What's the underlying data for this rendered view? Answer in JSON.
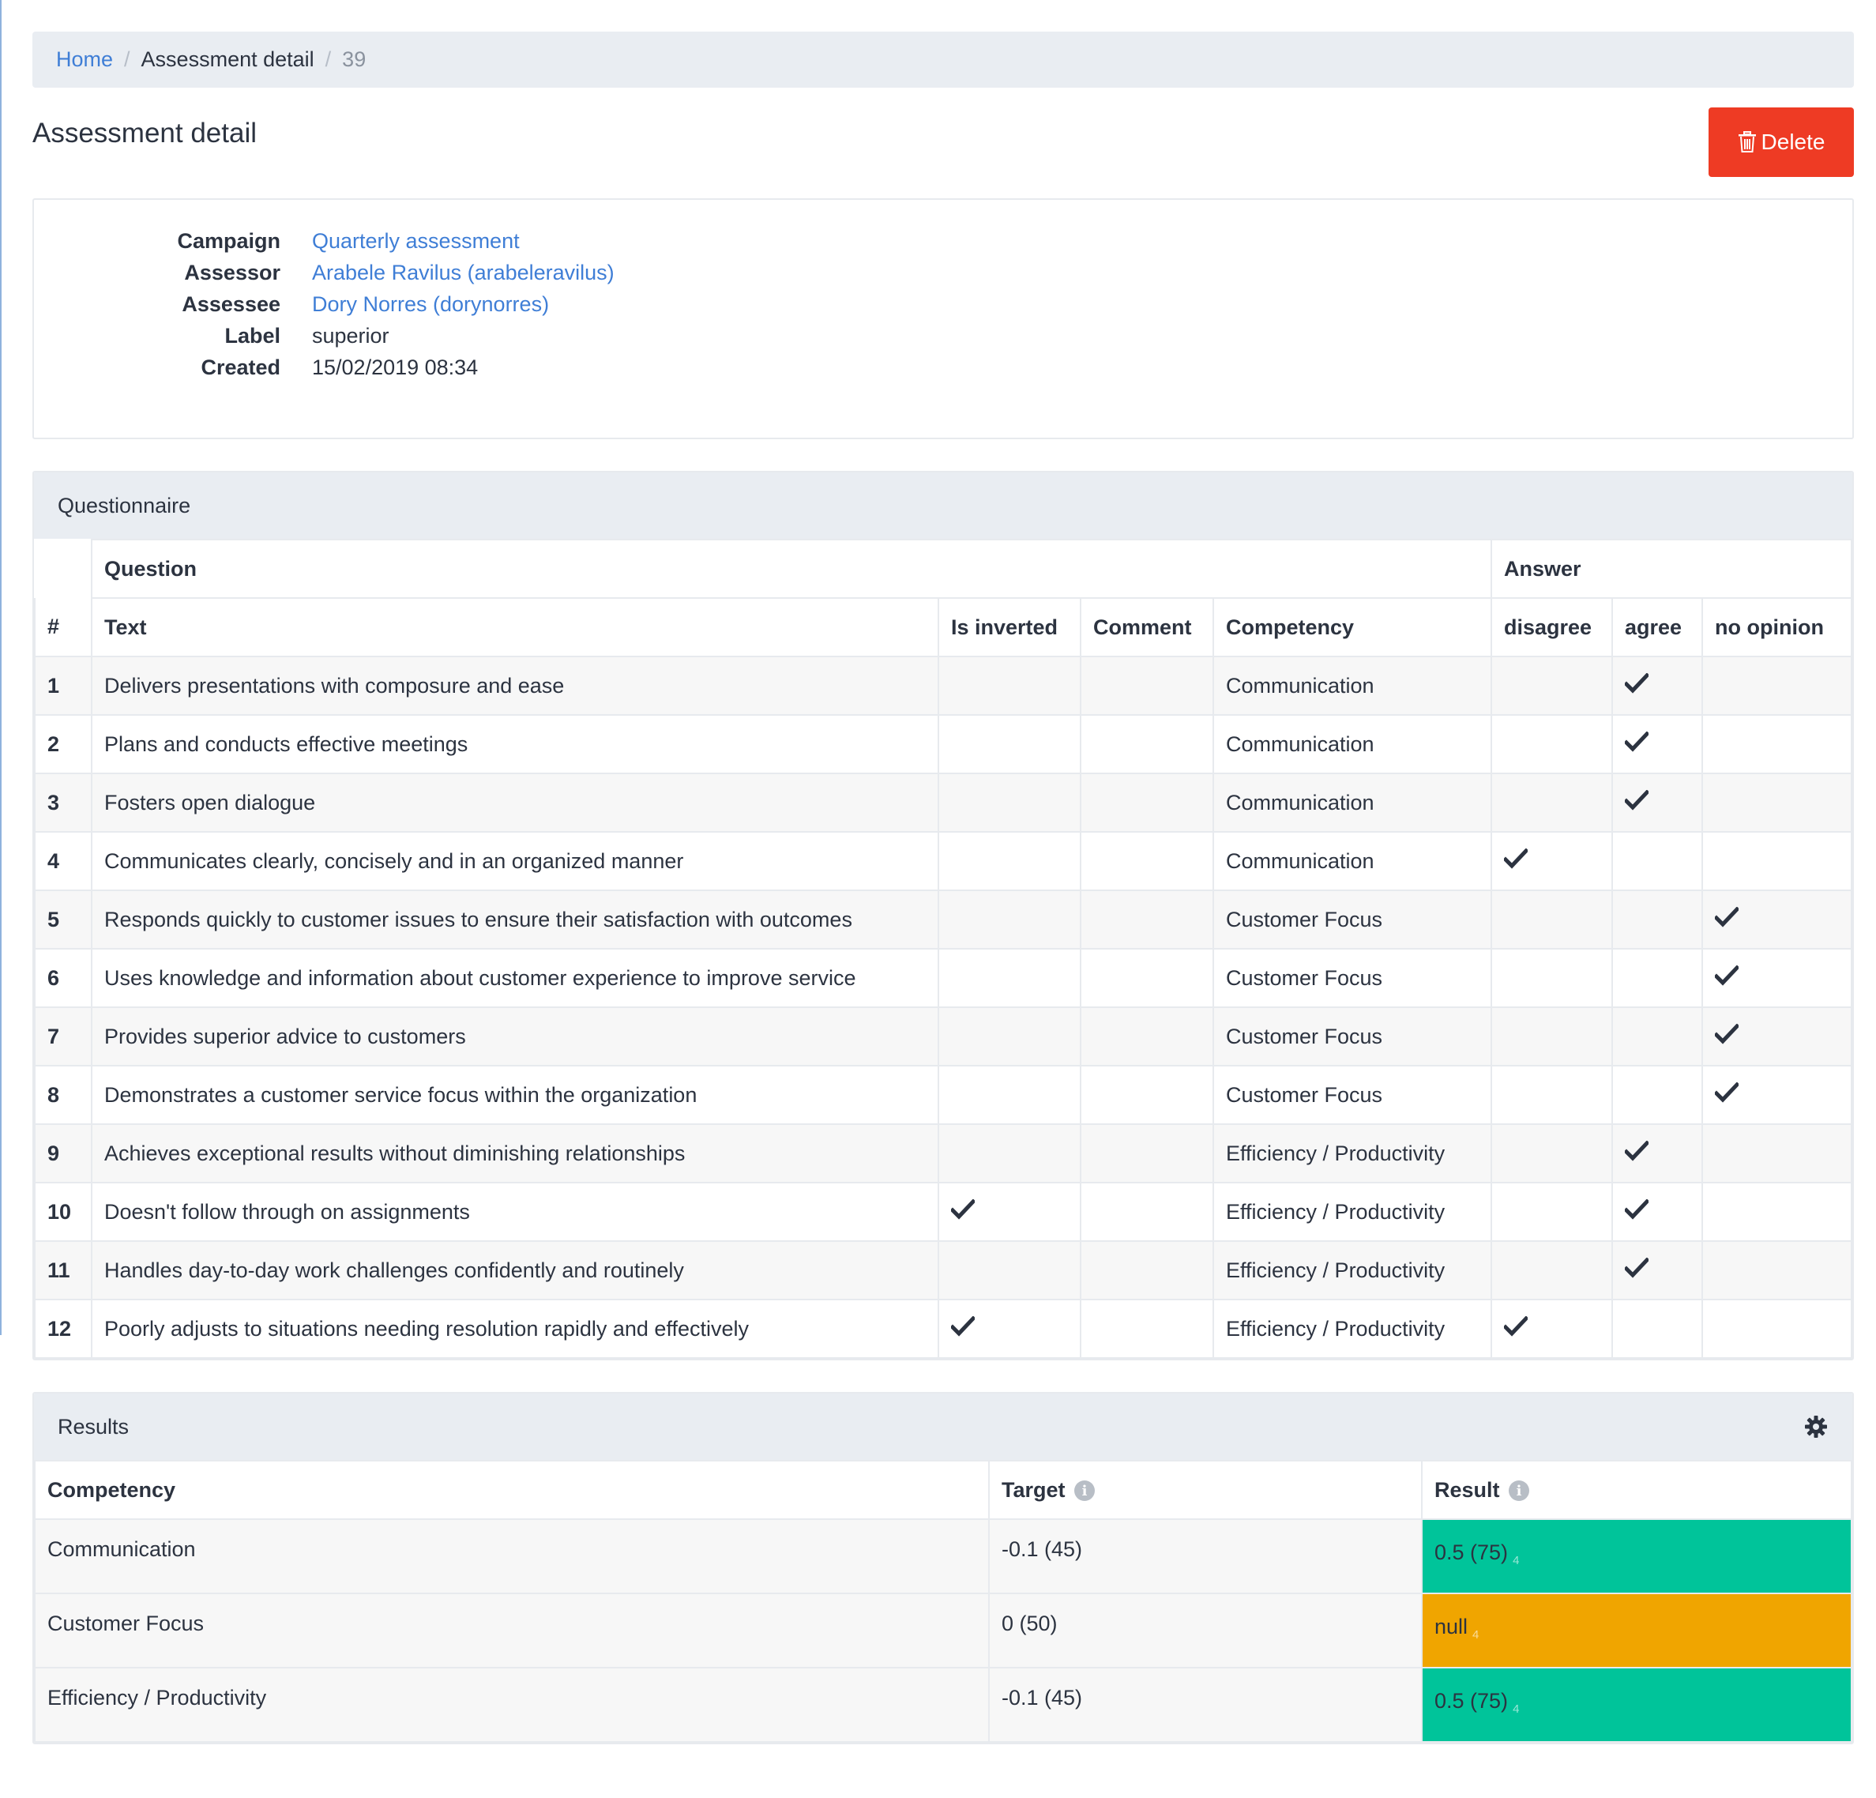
{
  "breadcrumb": {
    "home": "Home",
    "section": "Assessment detail",
    "id": "39"
  },
  "page": {
    "title": "Assessment detail"
  },
  "actions": {
    "delete_label": "Delete",
    "delete_color": "#ee3b24"
  },
  "details": {
    "campaign_label": "Campaign",
    "campaign_value": "Quarterly assessment",
    "assessor_label": "Assessor",
    "assessor_value": "Arabele Ravilus (arabeleravilus)",
    "assessee_label": "Assessee",
    "assessee_value": "Dory Norres (dorynorres)",
    "label_label": "Label",
    "label_value": "superior",
    "created_label": "Created",
    "created_value": "15/02/2019 08:34"
  },
  "questionnaire": {
    "title": "Questionnaire",
    "group_question": "Question",
    "group_answer": "Answer",
    "columns": {
      "num": "#",
      "text": "Text",
      "is_inverted": "Is inverted",
      "comment": "Comment",
      "competency": "Competency",
      "disagree": "disagree",
      "agree": "agree",
      "no_opinion": "no opinion"
    },
    "rows": [
      {
        "num": "1",
        "text": "Delivers presentations with composure and ease",
        "inverted": false,
        "comment": "",
        "competency": "Communication",
        "answer": "agree"
      },
      {
        "num": "2",
        "text": "Plans and conducts effective meetings",
        "inverted": false,
        "comment": "",
        "competency": "Communication",
        "answer": "agree"
      },
      {
        "num": "3",
        "text": "Fosters open dialogue",
        "inverted": false,
        "comment": "",
        "competency": "Communication",
        "answer": "agree"
      },
      {
        "num": "4",
        "text": "Communicates clearly, concisely and in an organized manner",
        "inverted": false,
        "comment": "",
        "competency": "Communication",
        "answer": "disagree"
      },
      {
        "num": "5",
        "text": "Responds quickly to customer issues to ensure their satisfaction with outcomes",
        "inverted": false,
        "comment": "",
        "competency": "Customer Focus",
        "answer": "no_opinion"
      },
      {
        "num": "6",
        "text": "Uses knowledge and information about customer experience to improve service",
        "inverted": false,
        "comment": "",
        "competency": "Customer Focus",
        "answer": "no_opinion"
      },
      {
        "num": "7",
        "text": "Provides superior advice to customers",
        "inverted": false,
        "comment": "",
        "competency": "Customer Focus",
        "answer": "no_opinion"
      },
      {
        "num": "8",
        "text": "Demonstrates a customer service focus within the organization",
        "inverted": false,
        "comment": "",
        "competency": "Customer Focus",
        "answer": "no_opinion"
      },
      {
        "num": "9",
        "text": "Achieves exceptional results without diminishing relationships",
        "inverted": false,
        "comment": "",
        "competency": "Efficiency / Productivity",
        "answer": "agree"
      },
      {
        "num": "10",
        "text": "Doesn't follow through on assignments",
        "inverted": true,
        "comment": "",
        "competency": "Efficiency / Productivity",
        "answer": "agree"
      },
      {
        "num": "11",
        "text": "Handles day-to-day work challenges confidently and routinely",
        "inverted": false,
        "comment": "",
        "competency": "Efficiency / Productivity",
        "answer": "agree"
      },
      {
        "num": "12",
        "text": "Poorly adjusts to situations needing resolution rapidly and effectively",
        "inverted": true,
        "comment": "",
        "competency": "Efficiency / Productivity",
        "answer": "disagree"
      }
    ]
  },
  "results": {
    "title": "Results",
    "settings_icon": "gear-icon",
    "columns": {
      "competency": "Competency",
      "target": "Target",
      "result": "Result"
    },
    "info_icon": "info-circle-icon",
    "rows": [
      {
        "competency": "Communication",
        "target": "-0.1 (45)",
        "result": "0.5 (75)",
        "count": "4",
        "status": "good"
      },
      {
        "competency": "Customer Focus",
        "target": "0 (50)",
        "result": "null",
        "count": "4",
        "status": "warn"
      },
      {
        "competency": "Efficiency / Productivity",
        "target": "-0.1 (45)",
        "result": "0.5 (75)",
        "count": "4",
        "status": "good"
      }
    ],
    "status_colors": {
      "good": "#00c49a",
      "warn": "#f0a500"
    }
  }
}
